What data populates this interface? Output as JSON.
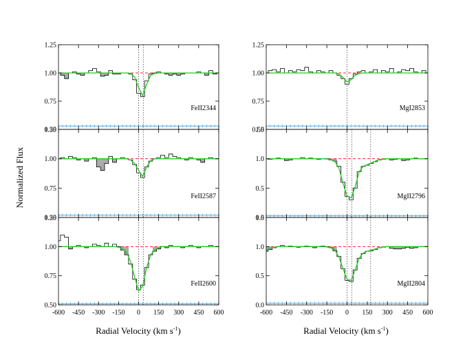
{
  "figure": {
    "ylabel": "Normalized Flux",
    "xlabel_main": "Radial Velocity (km s",
    "xlabel_sup": "-1",
    "xlabel_end": ")"
  },
  "colors": {
    "data": "#000000",
    "fit": "#22cc22",
    "continuum": "#ee2222",
    "error": "#55aadd",
    "fill": "#aaaaaa",
    "markers": "#444444"
  },
  "chart_data": [
    {
      "type": "line",
      "label": "FeII2344",
      "xlim": [
        -600,
        600
      ],
      "ylim": [
        0.5,
        1.25
      ],
      "yticks": [
        "0.50",
        "0.75",
        "1.00",
        "1.25"
      ],
      "xticks": [
        "-600",
        "-450",
        "-300",
        "-150",
        "0",
        "150",
        "300",
        "450",
        "600"
      ],
      "x": [
        -600,
        -570,
        -540,
        -510,
        -480,
        -450,
        -420,
        -390,
        -360,
        -330,
        -300,
        -270,
        -240,
        -210,
        -180,
        -150,
        -120,
        -90,
        -60,
        -30,
        0,
        30,
        60,
        90,
        120,
        150,
        180,
        210,
        240,
        270,
        300,
        330,
        360,
        390,
        420,
        450,
        480,
        510,
        540,
        570,
        600
      ],
      "flux": [
        1.0,
        0.98,
        0.95,
        1.0,
        1.01,
        0.99,
        0.98,
        1.0,
        1.02,
        1.04,
        1.01,
        0.97,
        0.98,
        1.02,
        0.99,
        0.99,
        1.0,
        1.0,
        0.99,
        0.94,
        0.82,
        0.79,
        0.93,
        0.99,
        1.0,
        1.01,
        1.0,
        0.99,
        0.98,
        0.99,
        0.98,
        0.99,
        1.0,
        1.0,
        1.0,
        1.01,
        1.0,
        0.98,
        1.02,
        0.99,
        1.0
      ],
      "fit": [
        1.0,
        1.0,
        1.0,
        1.0,
        1.0,
        1.0,
        1.0,
        1.0,
        1.0,
        1.0,
        1.0,
        1.0,
        1.0,
        1.0,
        1.0,
        1.0,
        1.0,
        1.0,
        0.995,
        0.965,
        0.87,
        0.8,
        0.9,
        0.98,
        0.995,
        1.0,
        1.0,
        1.0,
        1.0,
        1.0,
        1.0,
        1.0,
        1.0,
        1.0,
        1.0,
        1.0,
        1.0,
        1.0,
        1.0,
        1.0,
        1.0
      ],
      "error": 0.53,
      "continuum": 1.0,
      "components": [
        0,
        35
      ]
    },
    {
      "type": "line",
      "label": "FeII2587",
      "xlim": [
        -600,
        600
      ],
      "ylim": [
        0.5,
        1.25
      ],
      "yticks": [
        "0.50",
        "0.75",
        "1.00",
        "1.25"
      ],
      "xticks": [
        "-600",
        "-450",
        "-300",
        "-150",
        "0",
        "150",
        "300",
        "450",
        "600"
      ],
      "x": [
        -600,
        -570,
        -540,
        -510,
        -480,
        -450,
        -420,
        -390,
        -360,
        -330,
        -300,
        -270,
        -240,
        -210,
        -180,
        -150,
        -120,
        -90,
        -60,
        -30,
        0,
        30,
        60,
        90,
        120,
        150,
        180,
        210,
        240,
        270,
        300,
        330,
        360,
        390,
        420,
        450,
        480,
        510,
        540,
        570,
        600
      ],
      "flux": [
        1.0,
        1.01,
        1.0,
        1.02,
        1.01,
        0.99,
        1.0,
        0.98,
        1.0,
        1.01,
        0.93,
        0.9,
        0.96,
        1.02,
        0.97,
        1.0,
        1.01,
        1.0,
        0.99,
        0.95,
        0.88,
        0.84,
        0.93,
        0.98,
        1.0,
        1.01,
        1.03,
        1.01,
        1.04,
        1.02,
        1.01,
        1.0,
        0.99,
        1.01,
        1.0,
        0.99,
        0.97,
        1.0,
        1.01,
        1.0,
        1.0
      ],
      "fit": [
        1.0,
        1.0,
        1.0,
        1.0,
        1.0,
        1.0,
        1.0,
        1.0,
        1.0,
        1.0,
        1.0,
        1.0,
        1.0,
        1.0,
        1.0,
        1.0,
        1.0,
        1.0,
        0.99,
        0.96,
        0.9,
        0.85,
        0.93,
        0.985,
        1.0,
        1.0,
        1.0,
        1.0,
        1.0,
        1.0,
        1.0,
        1.0,
        1.0,
        1.0,
        1.0,
        1.0,
        1.0,
        1.0,
        1.0,
        1.0,
        1.0
      ],
      "error": 0.52,
      "continuum": 1.0,
      "components": [
        0,
        35
      ]
    },
    {
      "type": "line",
      "label": "FeII2600",
      "xlim": [
        -600,
        600
      ],
      "ylim": [
        0.5,
        1.25
      ],
      "yticks": [
        "0.50",
        "0.75",
        "1.00",
        "1.25"
      ],
      "xticks": [
        "-600",
        "-450",
        "-300",
        "-150",
        "0",
        "150",
        "300",
        "450",
        "600"
      ],
      "x": [
        -600,
        -570,
        -540,
        -510,
        -480,
        -450,
        -420,
        -390,
        -360,
        -330,
        -300,
        -270,
        -240,
        -210,
        -180,
        -150,
        -120,
        -90,
        -60,
        -30,
        0,
        30,
        60,
        90,
        120,
        150,
        180,
        210,
        240,
        270,
        300,
        330,
        360,
        390,
        420,
        450,
        480,
        510,
        540,
        570,
        600
      ],
      "flux": [
        1.05,
        1.1,
        1.08,
        0.98,
        1.0,
        1.01,
        1.0,
        0.99,
        1.0,
        1.02,
        1.01,
        1.0,
        1.03,
        1.0,
        1.02,
        1.0,
        0.97,
        0.93,
        0.85,
        0.72,
        0.63,
        0.67,
        0.82,
        0.93,
        0.96,
        0.98,
        1.0,
        0.99,
        1.01,
        1.0,
        1.0,
        0.99,
        1.0,
        1.01,
        1.0,
        0.99,
        1.0,
        1.0,
        1.01,
        1.0,
        1.0
      ],
      "fit": [
        1.0,
        1.0,
        1.0,
        1.0,
        1.0,
        1.0,
        1.0,
        1.0,
        1.0,
        1.0,
        1.0,
        1.0,
        1.0,
        1.0,
        1.0,
        0.995,
        0.98,
        0.95,
        0.87,
        0.74,
        0.62,
        0.66,
        0.82,
        0.93,
        0.97,
        0.99,
        1.0,
        1.0,
        1.0,
        1.0,
        1.0,
        1.0,
        1.0,
        1.0,
        1.0,
        1.0,
        1.0,
        1.0,
        1.0,
        1.0,
        1.0
      ],
      "error": 0.51,
      "continuum": 1.0,
      "components": [
        0,
        35
      ]
    },
    {
      "type": "line",
      "label": "MgI2853",
      "xlim": [
        -600,
        600
      ],
      "ylim": [
        0.5,
        1.25
      ],
      "yticks": [
        "0.50",
        "0.75",
        "1.00",
        "1.25"
      ],
      "xticks": [
        "-600",
        "-450",
        "-300",
        "-150",
        "0",
        "150",
        "300",
        "450",
        "600"
      ],
      "x": [
        -600,
        -570,
        -540,
        -510,
        -480,
        -450,
        -420,
        -390,
        -360,
        -330,
        -300,
        -270,
        -240,
        -210,
        -180,
        -150,
        -120,
        -90,
        -60,
        -30,
        0,
        30,
        60,
        90,
        120,
        150,
        180,
        210,
        240,
        270,
        300,
        330,
        360,
        390,
        420,
        450,
        480,
        510,
        540,
        570,
        600
      ],
      "flux": [
        1.0,
        1.02,
        1.03,
        1.01,
        1.04,
        1.0,
        1.02,
        1.01,
        1.03,
        1.02,
        1.05,
        1.01,
        1.0,
        1.02,
        1.01,
        1.0,
        1.02,
        1.0,
        0.98,
        0.95,
        0.9,
        0.95,
        0.99,
        1.01,
        1.02,
        1.0,
        1.01,
        1.03,
        1.0,
        1.02,
        1.01,
        1.04,
        1.0,
        1.01,
        1.03,
        1.02,
        1.04,
        1.01,
        1.0,
        1.02,
        1.0
      ],
      "fit": [
        1.0,
        1.0,
        1.0,
        1.0,
        1.0,
        1.0,
        1.0,
        1.0,
        1.0,
        1.0,
        1.0,
        1.0,
        1.0,
        1.0,
        1.0,
        1.0,
        1.0,
        1.0,
        0.99,
        0.96,
        0.92,
        0.94,
        0.98,
        0.995,
        1.0,
        1.0,
        1.0,
        1.0,
        1.0,
        1.0,
        1.0,
        1.0,
        1.0,
        1.0,
        1.0,
        1.0,
        1.0,
        1.0,
        1.0,
        1.0,
        1.0
      ],
      "error": 0.53,
      "continuum": 1.0,
      "components": [
        0
      ]
    },
    {
      "type": "line",
      "label": "MgII2796",
      "xlim": [
        -600,
        600
      ],
      "ylim": [
        0,
        1.5
      ],
      "yticks": [
        "0.0",
        "0.5",
        "1.0",
        "1.5"
      ],
      "xticks": [
        "-600",
        "-450",
        "-300",
        "-150",
        "0",
        "150",
        "300",
        "450",
        "600"
      ],
      "x": [
        -600,
        -570,
        -540,
        -510,
        -480,
        -450,
        -420,
        -390,
        -360,
        -330,
        -300,
        -270,
        -240,
        -210,
        -180,
        -150,
        -120,
        -90,
        -60,
        -30,
        0,
        30,
        60,
        90,
        120,
        150,
        180,
        210,
        240,
        270,
        300,
        330,
        360,
        390,
        420,
        450,
        480,
        510,
        540,
        570,
        600
      ],
      "flux": [
        1.0,
        0.99,
        1.0,
        1.01,
        1.0,
        0.97,
        0.98,
        1.0,
        1.0,
        1.02,
        1.0,
        1.01,
        1.0,
        0.99,
        1.0,
        1.0,
        0.98,
        0.96,
        0.87,
        0.6,
        0.36,
        0.3,
        0.5,
        0.78,
        0.87,
        0.89,
        0.92,
        0.95,
        0.98,
        0.99,
        1.0,
        0.98,
        0.99,
        1.0,
        0.97,
        0.98,
        1.0,
        1.01,
        1.0,
        1.0,
        1.0
      ],
      "fit": [
        1.0,
        1.0,
        1.0,
        1.0,
        1.0,
        1.0,
        1.0,
        1.0,
        1.0,
        1.0,
        1.0,
        1.0,
        1.0,
        1.0,
        1.0,
        0.995,
        0.985,
        0.95,
        0.84,
        0.58,
        0.37,
        0.33,
        0.52,
        0.78,
        0.87,
        0.9,
        0.93,
        0.96,
        0.985,
        0.995,
        1.0,
        1.0,
        1.0,
        1.0,
        1.0,
        1.0,
        1.0,
        1.0,
        1.0,
        1.0,
        1.0
      ],
      "error": 0.03,
      "continuum": 1.0,
      "components": [
        0,
        35,
        175
      ]
    },
    {
      "type": "line",
      "label": "MgII2804",
      "xlim": [
        -600,
        600
      ],
      "ylim": [
        0,
        1.5
      ],
      "yticks": [
        "0.0",
        "0.5",
        "1.0",
        "1.5"
      ],
      "xticks": [
        "-600",
        "-450",
        "-300",
        "-150",
        "0",
        "150",
        "300",
        "450",
        "600"
      ],
      "x": [
        -600,
        -570,
        -540,
        -510,
        -480,
        -450,
        -420,
        -390,
        -360,
        -330,
        -300,
        -270,
        -240,
        -210,
        -180,
        -150,
        -120,
        -90,
        -60,
        -30,
        0,
        30,
        60,
        90,
        120,
        150,
        180,
        210,
        240,
        270,
        300,
        330,
        360,
        390,
        420,
        450,
        480,
        510,
        540,
        570,
        600
      ],
      "flux": [
        0.92,
        0.95,
        0.98,
        1.0,
        1.02,
        1.0,
        1.01,
        1.0,
        0.99,
        1.0,
        1.01,
        1.0,
        0.98,
        1.0,
        1.01,
        1.0,
        0.98,
        0.93,
        0.83,
        0.62,
        0.42,
        0.4,
        0.6,
        0.8,
        0.88,
        0.92,
        0.93,
        0.95,
        0.98,
        0.99,
        1.0,
        0.97,
        0.96,
        0.96,
        0.97,
        0.99,
        0.97,
        0.98,
        1.0,
        1.0,
        1.0
      ],
      "fit": [
        0.94,
        0.97,
        0.99,
        1.0,
        1.0,
        1.0,
        1.0,
        1.0,
        1.0,
        1.0,
        1.0,
        1.0,
        1.0,
        1.0,
        1.0,
        0.995,
        0.98,
        0.94,
        0.82,
        0.62,
        0.44,
        0.42,
        0.6,
        0.8,
        0.89,
        0.92,
        0.94,
        0.96,
        0.985,
        0.995,
        1.0,
        1.0,
        1.0,
        1.0,
        1.0,
        1.0,
        1.0,
        1.0,
        1.0,
        1.0,
        1.0
      ],
      "error": 0.03,
      "continuum": 1.0,
      "components": [
        0,
        35,
        175
      ]
    }
  ]
}
